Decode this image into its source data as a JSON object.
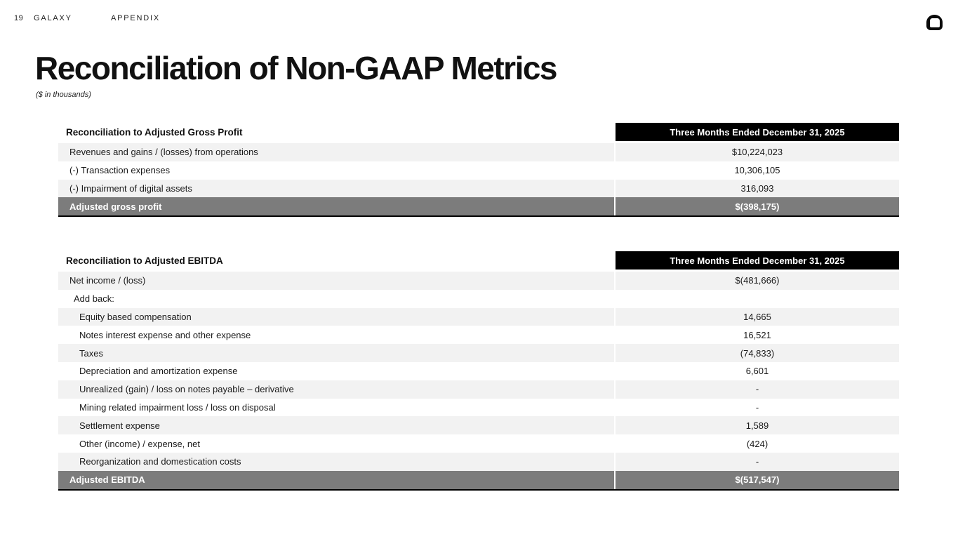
{
  "page": {
    "number": "19",
    "brand": "GALAXY",
    "section": "APPENDIX",
    "logo_icon": "galaxy-squircle-logo"
  },
  "title": "Reconciliation of Non-GAAP Metrics",
  "subtitle": "($ in thousands)",
  "colors": {
    "header_bg": "#000000",
    "header_text": "#ffffff",
    "shaded_row_bg": "#f2f2f2",
    "total_row_bg": "#7c7c7c",
    "total_row_text": "#ffffff",
    "body_text": "#1a1a1a"
  },
  "tables": [
    {
      "label": "Reconciliation to Adjusted Gross Profit",
      "column_header": "Three Months Ended December 31, 2025",
      "rows": [
        {
          "label": "Revenues and gains / (losses) from operations",
          "value": "$10,224,023",
          "indent": 1,
          "shaded": true
        },
        {
          "label": "(-) Transaction expenses",
          "value": "10,306,105",
          "indent": 1,
          "shaded": false
        },
        {
          "label": "(-) Impairment of digital assets",
          "value": "316,093",
          "indent": 1,
          "shaded": true
        }
      ],
      "total": {
        "label": "Adjusted gross profit",
        "value": "$(398,175)"
      }
    },
    {
      "label": "Reconciliation to Adjusted EBITDA",
      "column_header": "Three Months Ended December 31, 2025",
      "rows": [
        {
          "label": "Net income / (loss)",
          "value": "$(481,666)",
          "indent": 1,
          "shaded": true
        },
        {
          "label": "Add back:",
          "value": "",
          "indent": 2,
          "shaded": false
        },
        {
          "label": "Equity based compensation",
          "value": "14,665",
          "indent": 3,
          "shaded": true
        },
        {
          "label": "Notes interest expense and other expense",
          "value": "16,521",
          "indent": 3,
          "shaded": false
        },
        {
          "label": "Taxes",
          "value": "(74,833)",
          "indent": 3,
          "shaded": true
        },
        {
          "label": "Depreciation and amortization expense",
          "value": "6,601",
          "indent": 3,
          "shaded": false
        },
        {
          "label": "Unrealized (gain) / loss on notes payable – derivative",
          "value": "-",
          "indent": 3,
          "shaded": true
        },
        {
          "label": "Mining related impairment loss / loss on disposal",
          "value": "-",
          "indent": 3,
          "shaded": false
        },
        {
          "label": "Settlement expense",
          "value": "1,589",
          "indent": 3,
          "shaded": true
        },
        {
          "label": "Other (income) / expense, net",
          "value": "(424)",
          "indent": 3,
          "shaded": false
        },
        {
          "label": "Reorganization and domestication costs",
          "value": "-",
          "indent": 3,
          "shaded": true
        }
      ],
      "total": {
        "label": "Adjusted EBITDA",
        "value": "$(517,547)"
      }
    }
  ]
}
